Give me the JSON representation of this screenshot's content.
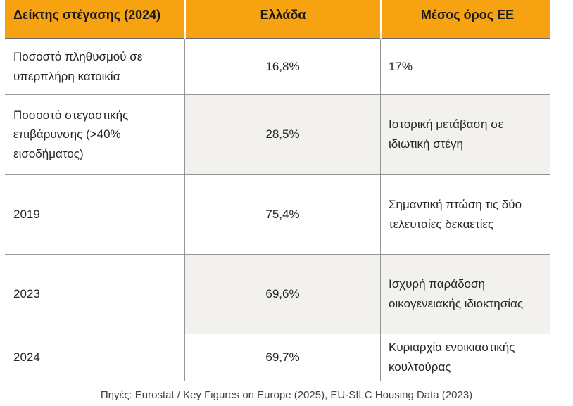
{
  "colors": {
    "header_bg": "#F7A211",
    "header_text": "#1A1A1A",
    "stripe_bg": "#F2F1EE",
    "border": "#949494",
    "body_text": "#262626",
    "footer_text": "#3F4450"
  },
  "chart_data": {
    "type": "table",
    "title": "Δείκτης στέγασης (2024)",
    "columns": [
      "Δείκτης στέγασης (2024)",
      "Ελλάδα",
      "Μέσος όρος ΕΕ"
    ],
    "rows": [
      [
        "Ποσοστό πληθυσμού σε υπερπλήρη κατοικία",
        "16,8%",
        "17%"
      ],
      [
        "Ποσοστό στεγαστικής επιβάρυνσης (>40% εισοδήματος)",
        "28,5%",
        "Ιστορική μετάβαση σε ιδιωτική στέγη"
      ],
      [
        "2019",
        "75,4%",
        "Σημαντική πτώση τις δύο τελευταίες δεκαετίες"
      ],
      [
        "2023",
        "69,6%",
        "Ισχυρή παράδοση οικογενειακής ιδιοκτησίας"
      ],
      [
        "2024",
        "69,7%",
        "Κυριαρχία ενοικιαστικής κουλτούρας"
      ]
    ],
    "layout": {
      "striped_row_indexes": [
        1,
        3
      ],
      "value_alignment": "center",
      "grid": "horizontal and vertical gray rules, no outer side borders"
    },
    "source_note": "Πηγές: Eurostat / Key Figures on Europe (2025), EU-SILC Housing Data (2023)"
  }
}
